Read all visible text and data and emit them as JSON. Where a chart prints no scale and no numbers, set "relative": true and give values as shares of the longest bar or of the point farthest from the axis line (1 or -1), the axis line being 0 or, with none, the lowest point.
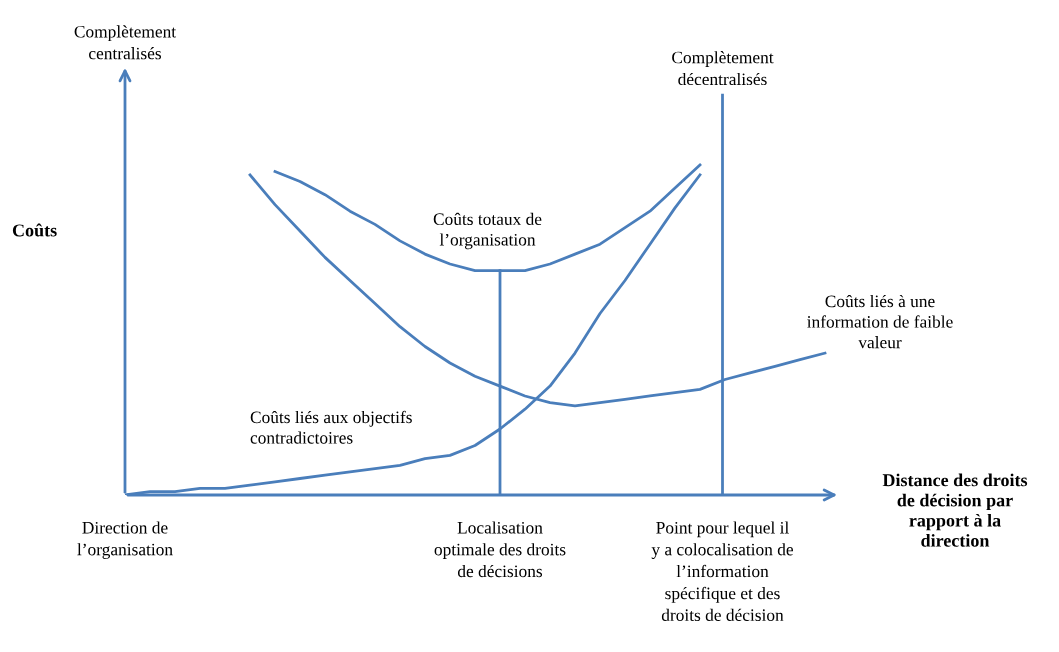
{
  "chart_data": {
    "type": "line",
    "relative": true,
    "legend": false,
    "marker": "none",
    "line_style": "solid",
    "ylabel": "Coûts",
    "xlabel": "Distance des droits\nde décision par\nrapport à la\ndirection",
    "categories": [
      null,
      null,
      null,
      null,
      null,
      null,
      null,
      null,
      null,
      null,
      null,
      null,
      null,
      null,
      null,
      null,
      null,
      null,
      null,
      null,
      null,
      null,
      null,
      null,
      null,
      null,
      null,
      null,
      null
    ],
    "series": [
      {
        "name": "Coûts liés aux objectifs\ncontradictoires",
        "color": "#4a7ebb",
        "values": [
          0,
          0.01,
          0.01,
          0.02,
          0.02,
          0.03,
          0.04,
          0.05,
          0.06,
          0.07,
          0.08,
          0.09,
          0.11,
          0.12,
          0.15,
          0.2,
          0.26,
          0.33,
          0.43,
          0.55,
          0.65,
          0.76,
          0.87,
          0.97,
          null,
          null,
          null,
          null,
          null
        ]
      },
      {
        "name": "Coûts liés à une\ninformation de faible\nvaleur",
        "color": "#4a7ebb",
        "values": [
          null,
          null,
          null,
          null,
          null,
          0.97,
          0.88,
          0.8,
          0.72,
          0.65,
          0.58,
          0.51,
          0.45,
          0.4,
          0.36,
          0.33,
          0.3,
          0.28,
          0.27,
          0.28,
          0.29,
          0.3,
          0.31,
          0.32,
          0.35,
          0.37,
          0.39,
          0.41,
          0.43
        ]
      },
      {
        "name": "Coûts totaux de\nl’organisation",
        "color": "#4a7ebb",
        "values": [
          null,
          null,
          null,
          null,
          null,
          null,
          0.98,
          0.95,
          0.91,
          0.86,
          0.82,
          0.77,
          0.73,
          0.7,
          0.68,
          0.68,
          0.68,
          0.7,
          0.73,
          0.76,
          0.81,
          0.86,
          0.93,
          1.0,
          null,
          null,
          null,
          null,
          null
        ]
      }
    ],
    "annotations": [
      "Complètement\ncentralisés",
      "Direction de\nl’organisation",
      "Localisation\noptimale des droits\nde décisions",
      "Complètement\ndécentralisés",
      "Point pour lequel il\ny a colocalisation de\nl’information\nspécifique et des\ndroits de décision"
    ]
  }
}
